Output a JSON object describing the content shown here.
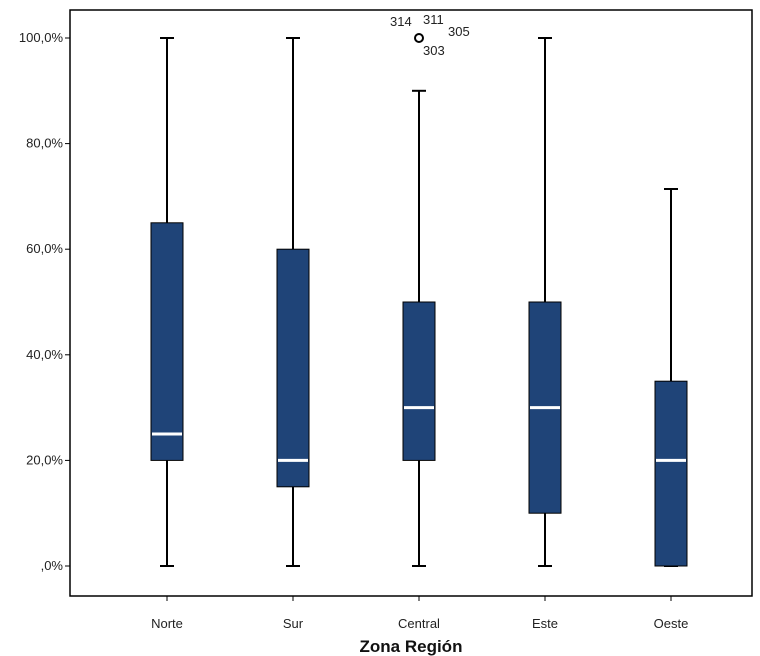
{
  "chart_data": {
    "type": "boxplot",
    "title": "",
    "xlabel": "Zona Región",
    "ylabel": "",
    "ylim": [
      -5,
      105
    ],
    "y_ticks": [
      {
        "value": 0,
        "label": ",0%"
      },
      {
        "value": 20,
        "label": "20,0%"
      },
      {
        "value": 40,
        "label": "40,0%"
      },
      {
        "value": 60,
        "label": "60,0%"
      },
      {
        "value": 80,
        "label": "80,0%"
      },
      {
        "value": 100,
        "label": "100,0%"
      }
    ],
    "categories": [
      "Norte",
      "Sur",
      "Central",
      "Este",
      "Oeste"
    ],
    "boxes": [
      {
        "category": "Norte",
        "min": 0,
        "q1": 20,
        "median": 25,
        "q3": 65,
        "max": 100
      },
      {
        "category": "Sur",
        "min": 0,
        "q1": 15,
        "median": 20,
        "q3": 60,
        "max": 100
      },
      {
        "category": "Central",
        "min": 0,
        "q1": 20,
        "median": 30,
        "q3": 50,
        "max": 90
      },
      {
        "category": "Este",
        "min": 0,
        "q1": 10,
        "median": 30,
        "q3": 50,
        "max": 100
      },
      {
        "category": "Oeste",
        "min": 0,
        "q1": 0,
        "median": 20,
        "q3": 35,
        "max": 71.4
      }
    ],
    "outliers": [
      {
        "category": "Central",
        "value": 100,
        "ids": [
          "314",
          "311",
          "305",
          "303"
        ]
      }
    ],
    "grid": false,
    "legend": "none",
    "colors": {
      "box_fill": "#1f4478",
      "median": "#ffffff",
      "whisker": "#000000",
      "frame": "#000000"
    }
  }
}
